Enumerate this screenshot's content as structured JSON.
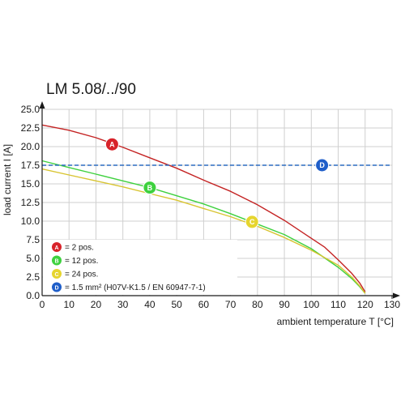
{
  "chart_data": {
    "type": "line",
    "title": "LM 5.08/../90",
    "xlabel": "ambient temperature T [°C]",
    "ylabel": "load current I [A]",
    "xlim": [
      0,
      130
    ],
    "ylim": [
      0,
      25
    ],
    "x_ticks": [
      "0",
      "10",
      "20",
      "30",
      "40",
      "50",
      "60",
      "70",
      "80",
      "90",
      "100",
      "110",
      "120",
      "130"
    ],
    "y_ticks": [
      "0.0",
      "2.5",
      "5.0",
      "7.5",
      "10.0",
      "12.5",
      "15.0",
      "17.5",
      "20.0",
      "22.5",
      "25.0"
    ],
    "grid": true,
    "series": [
      {
        "name": "= 2 pos.",
        "marker_label": "A",
        "color": "#c42323",
        "marker_color": "#d8232a",
        "marker_at": [
          26,
          20.3
        ],
        "points": [
          [
            0,
            22.9
          ],
          [
            10,
            22.2
          ],
          [
            20,
            21.2
          ],
          [
            30,
            19.9
          ],
          [
            40,
            18.5
          ],
          [
            50,
            17.1
          ],
          [
            60,
            15.5
          ],
          [
            70,
            14.0
          ],
          [
            80,
            12.2
          ],
          [
            90,
            10.1
          ],
          [
            100,
            7.7
          ],
          [
            105,
            6.5
          ],
          [
            110,
            4.8
          ],
          [
            115,
            3.0
          ],
          [
            118,
            1.7
          ],
          [
            120,
            0.5
          ]
        ]
      },
      {
        "name": "= 12 pos.",
        "marker_label": "B",
        "color": "#3ed13e",
        "marker_color": "#3ed13e",
        "marker_at": [
          40,
          14.5
        ],
        "points": [
          [
            0,
            18.1
          ],
          [
            10,
            17.2
          ],
          [
            20,
            16.3
          ],
          [
            30,
            15.4
          ],
          [
            40,
            14.5
          ],
          [
            50,
            13.4
          ],
          [
            60,
            12.3
          ],
          [
            70,
            11.0
          ],
          [
            80,
            9.6
          ],
          [
            90,
            8.2
          ],
          [
            100,
            6.3
          ],
          [
            110,
            3.8
          ],
          [
            115,
            2.3
          ],
          [
            118,
            1.2
          ],
          [
            120,
            0.3
          ]
        ]
      },
      {
        "name": "= 24 pos.",
        "marker_label": "C",
        "color": "#d8c431",
        "marker_color": "#e6d52e",
        "marker_at": [
          78,
          9.9
        ],
        "points": [
          [
            0,
            17.0
          ],
          [
            10,
            16.2
          ],
          [
            20,
            15.4
          ],
          [
            30,
            14.6
          ],
          [
            40,
            13.7
          ],
          [
            50,
            12.8
          ],
          [
            60,
            11.7
          ],
          [
            70,
            10.6
          ],
          [
            80,
            9.3
          ],
          [
            90,
            7.8
          ],
          [
            100,
            6.1
          ],
          [
            110,
            4.1
          ],
          [
            115,
            2.5
          ],
          [
            118,
            1.3
          ],
          [
            120,
            0.3
          ]
        ]
      },
      {
        "name": "= 1.5 mm² (H07V-K1.5 / EN 60947-7-1)",
        "marker_label": "D",
        "color": "#2d6cc0",
        "marker_color": "#1f5ec9",
        "dashed": true,
        "marker_at": [
          104,
          17.5
        ],
        "points": [
          [
            0,
            17.5
          ],
          [
            130,
            17.5
          ]
        ]
      }
    ],
    "legend_placement": "bottom-left"
  }
}
